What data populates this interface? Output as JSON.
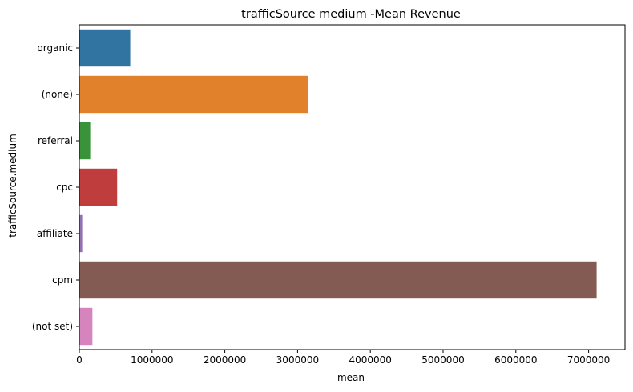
{
  "chart_data": {
    "type": "bar",
    "orientation": "horizontal",
    "title": "trafficSource medium -Mean Revenue",
    "xlabel": "mean",
    "ylabel": "trafficSource.medium",
    "categories": [
      "organic",
      "(none)",
      "referral",
      "cpc",
      "affiliate",
      "cpm",
      "(not set)"
    ],
    "values": [
      700000,
      3140000,
      150000,
      520000,
      40000,
      7110000,
      180000
    ],
    "colors": [
      "#3274a1",
      "#e1812c",
      "#3a923a",
      "#c03d3e",
      "#9372b2",
      "#845b53",
      "#d684bd"
    ],
    "xlim": [
      0,
      7500000
    ],
    "xticks": [
      0,
      1000000,
      2000000,
      3000000,
      4000000,
      5000000,
      6000000,
      7000000
    ],
    "xtick_labels": [
      "0",
      "1000000",
      "2000000",
      "3000000",
      "4000000",
      "5000000",
      "6000000",
      "7000000"
    ],
    "grid": false,
    "legend": "none"
  }
}
